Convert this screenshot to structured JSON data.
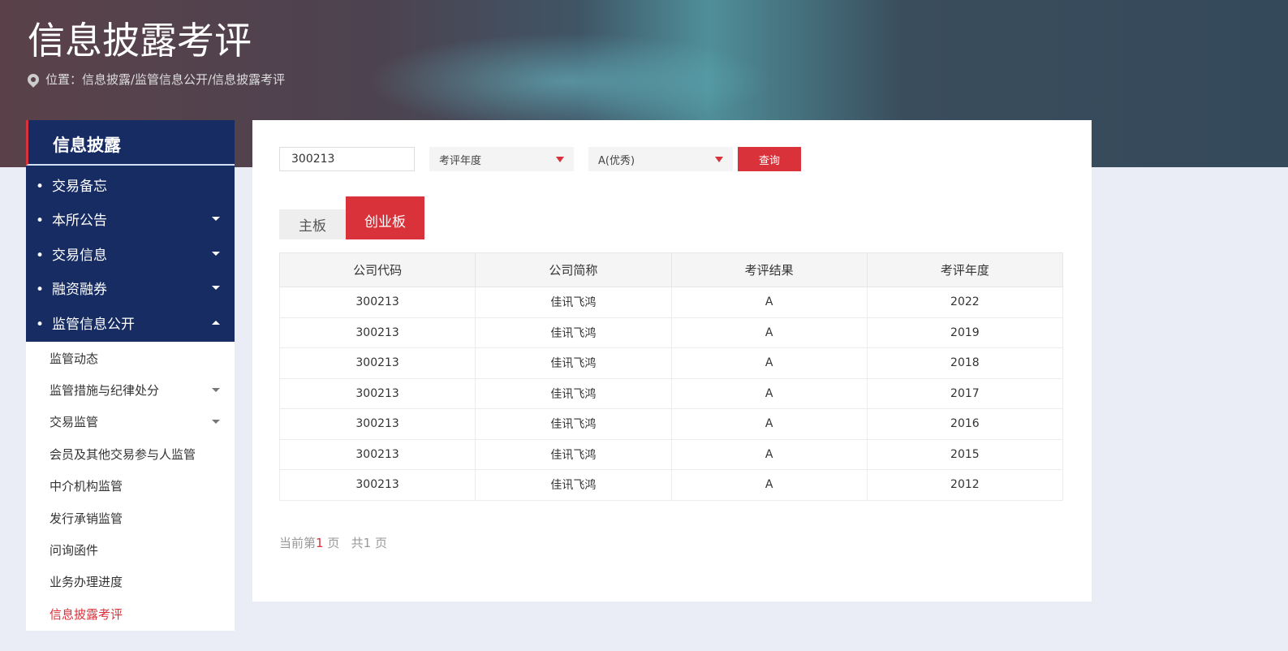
{
  "header": {
    "title": "信息披露考评",
    "breadcrumb": "位置：信息披露/监管信息公开/信息披露考评"
  },
  "sidebar": {
    "title": "信息披露",
    "items": [
      {
        "label": "交易备忘",
        "caret": false
      },
      {
        "label": "本所公告",
        "caret": true
      },
      {
        "label": "交易信息",
        "caret": true
      },
      {
        "label": "融资融券",
        "caret": true
      },
      {
        "label": "监管信息公开",
        "caret": true,
        "expanded": true
      }
    ],
    "subitems": [
      {
        "label": "监管动态"
      },
      {
        "label": "监管措施与纪律处分",
        "caret": true
      },
      {
        "label": "交易监管",
        "caret": true
      },
      {
        "label": "会员及其他交易参与人监管"
      },
      {
        "label": "中介机构监管"
      },
      {
        "label": "发行承销监管"
      },
      {
        "label": "问询函件"
      },
      {
        "label": "业务办理进度"
      },
      {
        "label": "信息披露考评",
        "active": true
      }
    ]
  },
  "search": {
    "code_value": "300213",
    "year_select": "考评年度",
    "result_select": "A(优秀)",
    "query_label": "查询"
  },
  "tabs": [
    {
      "label": "主板"
    },
    {
      "label": "创业板",
      "active": true
    }
  ],
  "table": {
    "headers": [
      "公司代码",
      "公司简称",
      "考评结果",
      "考评年度"
    ],
    "rows": [
      [
        "300213",
        "佳讯飞鸿",
        "A",
        "2022"
      ],
      [
        "300213",
        "佳讯飞鸿",
        "A",
        "2019"
      ],
      [
        "300213",
        "佳讯飞鸿",
        "A",
        "2018"
      ],
      [
        "300213",
        "佳讯飞鸿",
        "A",
        "2017"
      ],
      [
        "300213",
        "佳讯飞鸿",
        "A",
        "2016"
      ],
      [
        "300213",
        "佳讯飞鸿",
        "A",
        "2015"
      ],
      [
        "300213",
        "佳讯飞鸿",
        "A",
        "2012"
      ]
    ]
  },
  "pager": {
    "prefix": "当前第",
    "current": "1",
    "mid": " 页   共",
    "total": "1",
    "suffix": " 页"
  },
  "colors": {
    "accent": "#d9323a",
    "nav": "#162c63"
  }
}
